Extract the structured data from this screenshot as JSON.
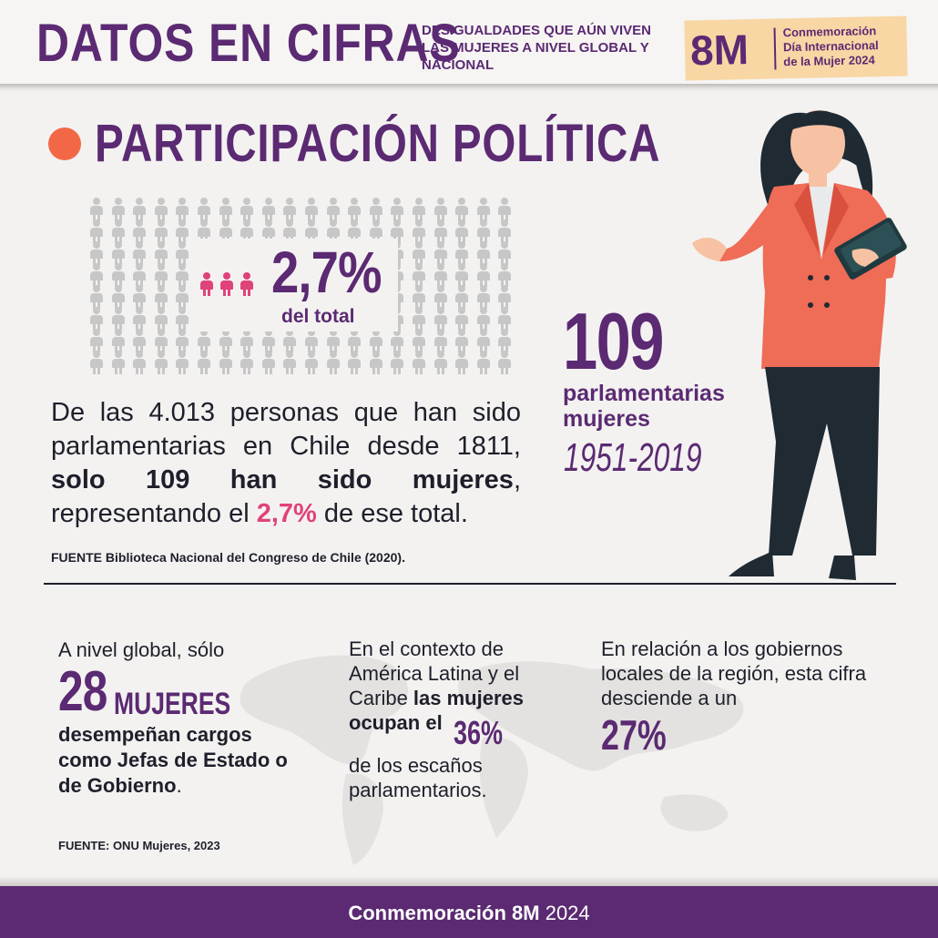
{
  "header": {
    "title": "DATOS EN CIFRAS",
    "subtitle": "DESIGUALDADES QUE AÚN VIVEN LAS MUJERES A NIVEL GLOBAL Y NACIONAL",
    "badge": {
      "big": "8M",
      "line1": "Conmemoración",
      "line2": "Día Internacional",
      "line3": "de la Mujer 2024"
    }
  },
  "section": {
    "title": "PARTICIPACIÓN POLÍTICA",
    "percent": "2,7%",
    "percent_label": "del total",
    "paragraph": {
      "p1": "De las 4.013 personas que han sido parlamentarias en Chile desde 1811, ",
      "p2_bold": "solo 109 han sido mujeres",
      "p3": ", representando el ",
      "p4_pink": "2,7%",
      "p5": " de ese total."
    },
    "source_label": "FUENTE",
    "source_text": " Biblioteca Nacional del Congreso de Chile (2020).",
    "stat_number": "109",
    "stat_label": "parlamentarias mujeres",
    "stat_years": "1951-2019"
  },
  "bottom": {
    "col1": {
      "intro": "A nivel global, sólo",
      "big_number": "28",
      "big_word": "MUJERES",
      "text_bold": "desempeñan cargos como Jefas de Estado o de Gobierno",
      "text_end": "."
    },
    "col2": {
      "t1": "En el contexto de América Latina y el Caribe ",
      "t2_bold": "las mujeres ocupan el",
      "pct": "36%",
      "t3": "de los escaños parlamentarios."
    },
    "col3": {
      "text": "En relación a los gobiernos locales de la región, esta cifra desciende a un",
      "pct": "27%"
    },
    "source": "FUENTE: ONU Mujeres, 2023"
  },
  "footer": {
    "bold": "Conmemoración 8M",
    "year": " 2024"
  },
  "colors": {
    "purple": "#5b2a72",
    "pink": "#e0427a",
    "orange": "#f26847",
    "badge": "#f8d7a5"
  },
  "icons": [
    "person-icon",
    "woman-illustration",
    "world-map"
  ]
}
